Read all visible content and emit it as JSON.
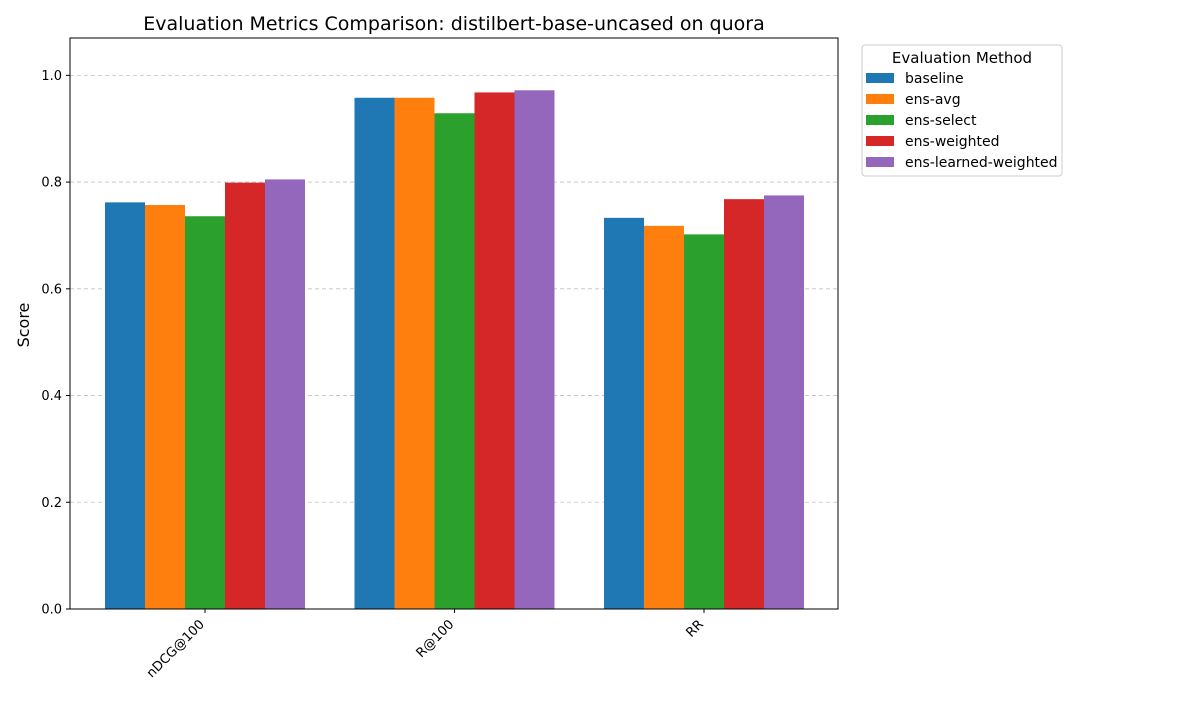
{
  "chart_data": {
    "type": "bar",
    "title": "Evaluation Metrics Comparison: distilbert-base-uncased on quora",
    "xlabel": "",
    "ylabel": "Score",
    "categories": [
      "nDCG@100",
      "R@100",
      "RR"
    ],
    "ylim": [
      0,
      1.07
    ],
    "yticks": [
      0.0,
      0.2,
      0.4,
      0.6,
      0.8,
      1.0
    ],
    "ytick_labels": [
      "0.0",
      "0.2",
      "0.4",
      "0.6",
      "0.8",
      "1.0"
    ],
    "grid": "y-dashed",
    "legend": {
      "title": "Evaluation Method",
      "placement": "outside-top-right"
    },
    "series": [
      {
        "name": "baseline",
        "color": "#1f77b4",
        "values": [
          0.762,
          0.958,
          0.733
        ]
      },
      {
        "name": "ens-avg",
        "color": "#ff7f0e",
        "values": [
          0.757,
          0.958,
          0.718
        ]
      },
      {
        "name": "ens-select",
        "color": "#2ca02c",
        "values": [
          0.736,
          0.929,
          0.702
        ]
      },
      {
        "name": "ens-weighted",
        "color": "#d62728",
        "values": [
          0.799,
          0.968,
          0.768
        ]
      },
      {
        "name": "ens-learned-weighted",
        "color": "#9467bd",
        "values": [
          0.805,
          0.972,
          0.775
        ]
      }
    ]
  }
}
